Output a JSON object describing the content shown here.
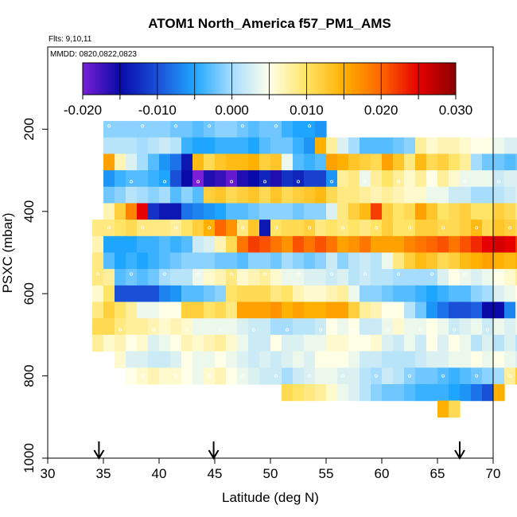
{
  "chart_data": {
    "type": "heatmap",
    "title": "ATOM1 North_America f57_PM1_AMS",
    "flights_label": "Flts: 9,10,11",
    "dates_label": "MMDD: 0820,0822,0823",
    "xlabel": "Latitude (deg N)",
    "ylabel": "PSXC (mbar)",
    "xlim": [
      30,
      70
    ],
    "ylim": [
      1000,
      0
    ],
    "x_ticks": [
      "30",
      "35",
      "40",
      "45",
      "50",
      "55",
      "60",
      "65",
      "70"
    ],
    "y_ticks": [
      "200",
      "400",
      "600",
      "800",
      "1000"
    ],
    "colorbar": {
      "range": [
        -0.02,
        0.03
      ],
      "tick_values": [
        -0.02,
        -0.01,
        0.0,
        0.01,
        0.02,
        0.03
      ],
      "tick_labels": [
        "-0.020",
        "-0.010",
        "0.000",
        "0.010",
        "0.020",
        "0.030"
      ],
      "colors": [
        "#7a1fd6",
        "#0a0aa8",
        "#1a4fd8",
        "#1ea6ff",
        "#a6ddff",
        "#ffffe8",
        "#ffe466",
        "#ffb000",
        "#ff6600",
        "#e60000",
        "#8a0000"
      ]
    },
    "arrow_latitudes": [
      34.6,
      44.9,
      67.0
    ],
    "lat_step": 1.0,
    "pressure_step": 40,
    "rows": [
      {
        "p": 200,
        "lat_start": 35,
        "values": [
          -0.001,
          -0.001,
          -0.001,
          -0.001,
          -0.001,
          -0.001,
          -0.002,
          -0.002,
          -0.003,
          -0.002,
          -0.001,
          -0.001,
          -0.002,
          -0.003,
          -0.002,
          -0.002,
          -0.004,
          -0.005,
          -0.005,
          -0.006
        ]
      },
      {
        "p": 240,
        "lat_start": 35,
        "values": [
          0.001,
          0.001,
          0.001,
          0.0,
          0.001,
          0.002,
          0.001,
          -0.004,
          -0.005,
          -0.005,
          -0.004,
          -0.004,
          -0.004,
          -0.005,
          -0.003,
          -0.002,
          -0.002,
          -0.004,
          -0.006,
          0.015,
          0.008,
          0.003,
          0.0,
          -0.003,
          -0.003,
          -0.003,
          -0.002,
          -0.001,
          0.008,
          0.006,
          0.007,
          0.007,
          0.006,
          0.005,
          0.005,
          0.004,
          0.003,
          0.003
        ]
      },
      {
        "p": 280,
        "lat_start": 35,
        "values": [
          0.016,
          0.007,
          0.003,
          0.0,
          -0.003,
          -0.006,
          -0.008,
          -0.014,
          0.014,
          0.011,
          0.013,
          0.014,
          0.014,
          0.015,
          0.012,
          0.013,
          0.004,
          -0.003,
          -0.004,
          -0.003,
          0.016,
          0.015,
          0.013,
          0.012,
          0.011,
          0.016,
          0.013,
          0.009,
          0.014,
          0.011,
          0.012,
          0.01,
          0.008,
          0.0,
          -0.002,
          -0.002,
          -0.003,
          -0.002,
          -0.001,
          0.0,
          0.0,
          0.001
        ]
      },
      {
        "p": 320,
        "lat_start": 35,
        "values": [
          -0.006,
          -0.004,
          -0.003,
          -0.003,
          -0.004,
          -0.005,
          -0.01,
          -0.015,
          -0.02,
          -0.016,
          -0.017,
          -0.019,
          -0.016,
          -0.015,
          -0.013,
          -0.016,
          -0.012,
          -0.013,
          -0.011,
          -0.011,
          -0.006,
          0.008,
          0.009,
          0.004,
          0.008,
          0.01,
          0.008,
          0.006,
          0.008,
          0.005,
          0.008,
          0.006,
          0.004,
          0.004,
          0.004,
          0.002,
          0.003,
          0.003,
          0.004,
          0.0,
          0.006,
          0.005
        ]
      },
      {
        "p": 360,
        "lat_start": 35,
        "values": [
          -0.002,
          -0.001,
          0.001,
          0.0,
          -0.001,
          0.0,
          -0.003,
          -0.001,
          -0.003,
          0.012,
          0.013,
          0.011,
          0.012,
          0.013,
          0.011,
          0.013,
          0.011,
          0.012,
          0.013,
          0.014,
          0.011,
          0.009,
          0.009,
          0.008,
          0.007,
          0.008,
          0.007,
          0.006,
          0.006,
          0.004,
          0.004,
          0.002,
          0.002,
          0.0,
          0.0,
          0.001,
          0.002,
          0.003,
          0.002,
          0.002,
          -0.001
        ]
      },
      {
        "p": 400,
        "lat_start": 35,
        "values": [
          0.007,
          0.012,
          0.018,
          0.025,
          -0.012,
          -0.014,
          -0.014,
          -0.008,
          -0.007,
          -0.006,
          -0.005,
          -0.003,
          -0.003,
          -0.002,
          -0.001,
          -0.001,
          -0.001,
          -0.002,
          -0.001,
          -0.001,
          0.003,
          0.009,
          0.012,
          0.014,
          0.022,
          0.012,
          0.01,
          0.011,
          0.016,
          0.013,
          0.01,
          0.011,
          0.012,
          0.01,
          0.01,
          0.012,
          0.011,
          0.009,
          0.016,
          0.011,
          0.015,
          0.011
        ]
      },
      {
        "p": 440,
        "lat_start": 34,
        "values": [
          0.009,
          0.009,
          0.01,
          0.011,
          0.009,
          0.009,
          0.009,
          0.008,
          0.01,
          0.012,
          0.015,
          0.02,
          0.017,
          0.009,
          0.013,
          -0.014,
          0.01,
          0.011,
          0.011,
          0.012,
          0.009,
          0.01,
          0.009,
          0.01,
          0.009,
          0.01,
          0.012,
          0.01,
          0.01,
          0.012,
          0.012,
          0.011,
          0.011,
          0.012,
          0.014,
          0.011,
          0.013,
          0.012,
          0.011,
          0.014,
          0.01,
          0.015
        ]
      },
      {
        "p": 480,
        "lat_start": 34,
        "values": [
          0.007,
          -0.005,
          -0.005,
          -0.005,
          -0.004,
          -0.004,
          -0.003,
          -0.004,
          -0.003,
          0.002,
          0.003,
          0.007,
          0.011,
          0.019,
          0.022,
          0.021,
          0.019,
          0.017,
          0.021,
          0.019,
          0.021,
          0.019,
          0.016,
          0.017,
          0.019,
          0.016,
          0.016,
          0.016,
          0.018,
          0.019,
          0.02,
          0.021,
          0.019,
          0.021,
          0.023,
          0.025,
          0.026,
          0.025,
          0.022,
          0.018,
          0.017,
          0.016
        ]
      },
      {
        "p": 520,
        "lat_start": 34,
        "values": [
          0.009,
          -0.003,
          -0.005,
          -0.004,
          -0.005,
          -0.004,
          -0.003,
          -0.002,
          -0.001,
          -0.001,
          -0.001,
          -0.002,
          -0.002,
          -0.003,
          -0.001,
          -0.001,
          -0.002,
          0.0,
          -0.001,
          -0.002,
          -0.001,
          0.002,
          -0.001,
          0.001,
          0.002,
          0.001,
          0.004,
          0.009,
          0.012,
          0.014,
          0.013,
          0.011,
          0.012,
          0.014,
          0.015,
          0.016,
          0.015,
          0.014,
          0.015,
          0.011,
          0.009,
          0.012
        ]
      },
      {
        "p": 560,
        "lat_start": 34,
        "values": [
          0.009,
          0.008,
          -0.003,
          -0.002,
          -0.003,
          -0.002,
          0.0,
          0.001,
          0.001,
          0.004,
          0.006,
          0.007,
          0.009,
          0.006,
          0.007,
          0.008,
          0.006,
          0.004,
          0.004,
          0.003,
          0.003,
          0.002,
          0.003,
          0.001,
          0.002,
          0.001,
          0.001,
          0.0,
          0.0,
          0.0,
          0.0,
          0.003,
          0.005,
          0.004,
          0.003,
          0.004,
          0.005,
          0.006,
          0.008,
          0.009,
          0.01,
          0.012
        ]
      },
      {
        "p": 600,
        "lat_start": 34,
        "values": [
          0.006,
          0.01,
          -0.01,
          -0.01,
          -0.01,
          -0.01,
          -0.007,
          -0.006,
          -0.003,
          -0.003,
          -0.002,
          -0.001,
          0.01,
          0.011,
          0.011,
          0.011,
          0.009,
          0.01,
          0.007,
          0.006,
          0.006,
          0.007,
          0.008,
          0.004,
          -0.001,
          -0.001,
          -0.002,
          -0.003,
          -0.003,
          -0.004,
          -0.005,
          -0.004,
          -0.003,
          -0.003,
          -0.001,
          0.0,
          0.003,
          0.004,
          0.005,
          0.007,
          0.008
        ]
      },
      {
        "p": 640,
        "lat_start": 34,
        "values": [
          0.009,
          0.012,
          0.01,
          0.008,
          0.004,
          0.004,
          0.005,
          0.005,
          0.012,
          0.012,
          0.01,
          0.011,
          0.009,
          0.016,
          0.016,
          0.016,
          0.017,
          0.015,
          0.016,
          0.015,
          0.015,
          0.016,
          0.016,
          0.012,
          0.008,
          0.007,
          0.005,
          0.005,
          0.001,
          -0.002,
          -0.006,
          -0.008,
          -0.01,
          -0.01,
          -0.009,
          -0.015,
          -0.015,
          -0.007,
          0.003,
          0.007,
          0.01
        ]
      },
      {
        "p": 680,
        "lat_start": 34,
        "values": [
          0.011,
          0.011,
          0.009,
          0.008,
          0.008,
          0.007,
          0.006,
          0.007,
          0.006,
          0.004,
          0.004,
          0.004,
          0.004,
          0.003,
          0.002,
          0.002,
          0.0,
          0.0,
          0.001,
          0.001,
          0.002,
          0.005,
          0.004,
          0.005,
          0.002,
          0.002,
          0.004,
          0.006,
          0.004,
          0.004,
          0.005,
          0.004,
          0.002,
          0.003,
          0.004,
          0.002,
          0.004,
          0.003,
          0.004,
          0.003,
          0.004,
          0.008
        ]
      },
      {
        "p": 720,
        "lat_start": 34,
        "values": [
          0.008,
          0.006,
          0.007,
          0.005,
          0.006,
          0.003,
          0.004,
          0.005,
          0.007,
          0.006,
          0.007,
          0.008,
          0.006,
          0.004,
          0.002,
          0.002,
          0.005,
          0.003,
          0.003,
          0.004,
          0.004,
          0.006,
          0.006,
          0.005,
          0.005,
          0.006,
          0.003,
          0.002,
          0.004,
          0.002,
          0.005,
          0.003,
          0.005,
          0.004,
          0.001,
          0.003,
          0.001,
          0.003,
          0.001,
          0.006,
          0.008
        ]
      },
      {
        "p": 760,
        "lat_start": 36,
        "values": [
          0.006,
          0.003,
          0.003,
          0.002,
          0.002,
          0.003,
          0.005,
          0.004,
          0.004,
          0.005,
          0.004,
          0.003,
          0.002,
          0.003,
          0.002,
          0.003,
          0.004,
          0.003,
          0.005,
          0.005,
          0.005,
          0.004,
          0.002,
          0.002,
          0.001,
          0.001,
          0.001,
          0.002,
          0.003,
          0.003,
          0.004,
          0.004,
          0.005,
          0.004,
          0.005,
          0.004,
          0.003
        ]
      },
      {
        "p": 800,
        "lat_start": 37,
        "values": [
          0.005,
          0.006,
          0.007,
          0.006,
          0.006,
          0.005,
          0.004,
          0.006,
          0.007,
          0.005,
          0.004,
          0.003,
          0.002,
          0.002,
          0.0,
          0.002,
          0.003,
          0.004,
          0.004,
          0.003,
          0.003,
          0.001,
          0.0,
          0.002,
          0.001,
          -0.001,
          -0.002,
          -0.002,
          -0.003,
          -0.004,
          -0.003,
          -0.002,
          -0.001,
          0.0,
          0.008,
          0.012
        ]
      },
      {
        "p": 840,
        "lat_start": 51,
        "values": [
          0.011,
          0.01,
          0.009,
          0.008,
          0.006,
          0.004,
          0.003,
          0.001,
          -0.001,
          -0.002,
          -0.002,
          -0.003,
          -0.004,
          -0.004,
          -0.004,
          -0.005,
          -0.006,
          -0.008,
          -0.01,
          0.015
        ]
      },
      {
        "p": 880,
        "lat_start": 65,
        "values": [
          0.015,
          0.011
        ]
      }
    ]
  }
}
